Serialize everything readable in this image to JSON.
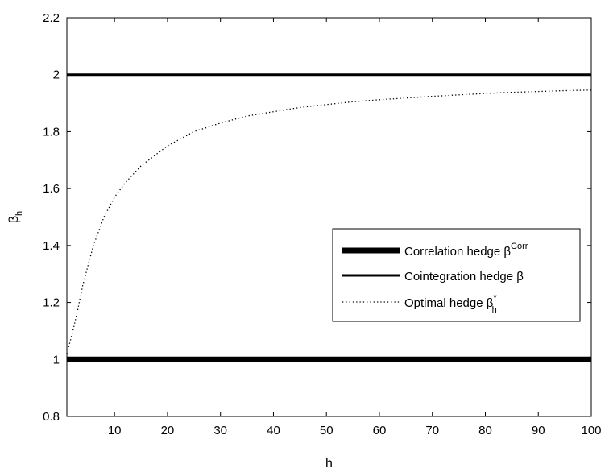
{
  "chart_data": {
    "type": "line",
    "xlabel": "h",
    "ylabel": {
      "base": "β",
      "sub": "h"
    },
    "xlim": [
      1,
      100
    ],
    "ylim": [
      0.8,
      2.2
    ],
    "x_ticks": [
      10,
      20,
      30,
      40,
      50,
      60,
      70,
      80,
      90,
      100
    ],
    "y_ticks": [
      0.8,
      1.0,
      1.2,
      1.4,
      1.6,
      1.8,
      2.0,
      2.2
    ],
    "x_tick_labels": [
      "10",
      "20",
      "30",
      "40",
      "50",
      "60",
      "70",
      "80",
      "90",
      "100"
    ],
    "y_tick_labels": [
      "0.8",
      "1",
      "1.2",
      "1.4",
      "1.6",
      "1.8",
      "2",
      "2.2"
    ],
    "grid": false,
    "legend_position": "center-right",
    "series": [
      {
        "label": {
          "text": "Correlation hedge β",
          "sup": "Corr",
          "sub": ""
        },
        "style": "thick-solid",
        "color": "#000000",
        "x": [
          1,
          100
        ],
        "y": [
          1.0,
          1.0
        ]
      },
      {
        "label": {
          "text": "Cointegration hedge β",
          "sup": "",
          "sub": ""
        },
        "style": "solid",
        "color": "#000000",
        "x": [
          1,
          100
        ],
        "y": [
          2.0,
          2.0
        ]
      },
      {
        "label": {
          "text": "Optimal hedge β",
          "sup": "*",
          "sub": "h"
        },
        "style": "dotted",
        "color": "#000000",
        "x": [
          1,
          2,
          3,
          4,
          5,
          6,
          7,
          8,
          10,
          12,
          15,
          20,
          25,
          30,
          35,
          40,
          45,
          50,
          55,
          60,
          65,
          70,
          75,
          80,
          85,
          90,
          95,
          100
        ],
        "y": [
          1.02,
          1.09,
          1.17,
          1.26,
          1.33,
          1.4,
          1.45,
          1.5,
          1.57,
          1.62,
          1.68,
          1.75,
          1.8,
          1.83,
          1.855,
          1.87,
          1.885,
          1.895,
          1.905,
          1.912,
          1.918,
          1.924,
          1.929,
          1.934,
          1.938,
          1.941,
          1.944,
          1.946
        ]
      }
    ]
  }
}
